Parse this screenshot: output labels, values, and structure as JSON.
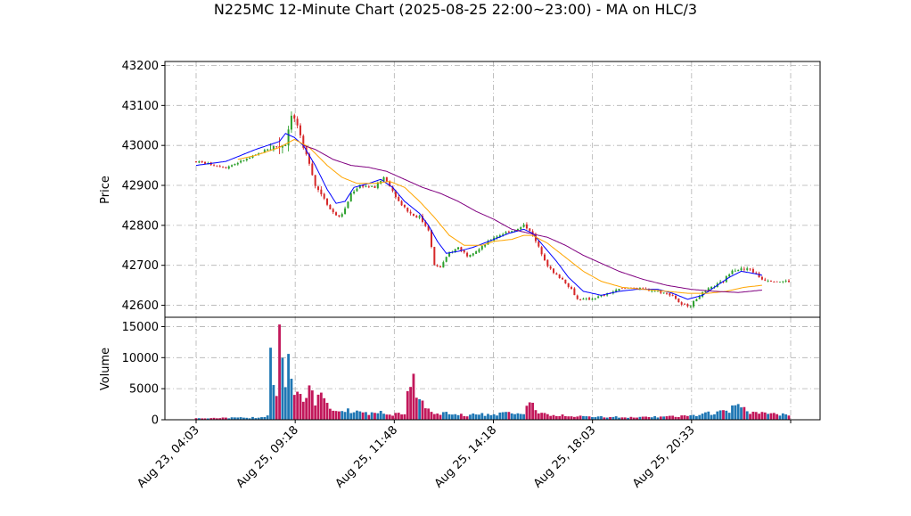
{
  "chart_data": {
    "type": "candlestick",
    "title": "N225MC 12-Minute Chart (2025-08-25 22:00~23:00) - MA on HLC/3",
    "price_panel": {
      "ylabel": "Price",
      "ylim": [
        42570,
        43210
      ],
      "yticks": [
        42600,
        42700,
        42800,
        42900,
        43000,
        43100,
        43200
      ],
      "grid": true
    },
    "volume_panel": {
      "ylabel": "Volume",
      "ylim": [
        0,
        16500
      ],
      "yticks": [
        0,
        5000,
        10000,
        15000
      ],
      "grid": true
    },
    "x_tick_labels": [
      "Aug 23, 04:03",
      "Aug 25, 09:18",
      "Aug 25, 11:48",
      "Aug 25, 14:18",
      "Aug 25, 18:03",
      "Aug 25, 20:33",
      ""
    ],
    "bar_count": 200,
    "colors": {
      "up": "#2ca02c",
      "down": "#d62728",
      "volume_up": "#1f77b4",
      "volume_down": "#c2185b",
      "ma_short": "#0000ff",
      "ma_mid": "#ffa500",
      "ma_long": "#800080"
    },
    "price_anchors": [
      [
        0,
        42960
      ],
      [
        10,
        42945
      ],
      [
        15,
        42960
      ],
      [
        20,
        42975
      ],
      [
        25,
        42995
      ],
      [
        28,
        43000
      ],
      [
        30,
        43005
      ],
      [
        32,
        43080
      ],
      [
        34,
        43050
      ],
      [
        36,
        42990
      ],
      [
        38,
        42960
      ],
      [
        40,
        42900
      ],
      [
        43,
        42870
      ],
      [
        45,
        42840
      ],
      [
        48,
        42820
      ],
      [
        50,
        42840
      ],
      [
        52,
        42880
      ],
      [
        55,
        42900
      ],
      [
        60,
        42895
      ],
      [
        63,
        42920
      ],
      [
        65,
        42900
      ],
      [
        68,
        42860
      ],
      [
        72,
        42830
      ],
      [
        75,
        42820
      ],
      [
        78,
        42790
      ],
      [
        80,
        42700
      ],
      [
        82,
        42695
      ],
      [
        85,
        42730
      ],
      [
        88,
        42745
      ],
      [
        91,
        42725
      ],
      [
        95,
        42740
      ],
      [
        100,
        42770
      ],
      [
        105,
        42785
      ],
      [
        108,
        42790
      ],
      [
        110,
        42800
      ],
      [
        112,
        42790
      ],
      [
        115,
        42745
      ],
      [
        118,
        42700
      ],
      [
        120,
        42680
      ],
      [
        123,
        42665
      ],
      [
        126,
        42640
      ],
      [
        128,
        42615
      ],
      [
        132,
        42615
      ],
      [
        137,
        42625
      ],
      [
        142,
        42640
      ],
      [
        146,
        42645
      ],
      [
        150,
        42640
      ],
      [
        155,
        42635
      ],
      [
        160,
        42625
      ],
      [
        163,
        42600
      ],
      [
        166,
        42600
      ],
      [
        169,
        42625
      ],
      [
        172,
        42640
      ],
      [
        177,
        42660
      ],
      [
        180,
        42690
      ],
      [
        186,
        42690
      ],
      [
        190,
        42665
      ],
      [
        195,
        42660
      ],
      [
        199,
        42660
      ]
    ],
    "ma_short": [
      [
        0,
        42950
      ],
      [
        10,
        42960
      ],
      [
        20,
        42990
      ],
      [
        28,
        43010
      ],
      [
        30,
        43030
      ],
      [
        33,
        43020
      ],
      [
        36,
        43000
      ],
      [
        40,
        42950
      ],
      [
        44,
        42890
      ],
      [
        47,
        42855
      ],
      [
        50,
        42860
      ],
      [
        53,
        42895
      ],
      [
        58,
        42905
      ],
      [
        62,
        42915
      ],
      [
        66,
        42895
      ],
      [
        70,
        42860
      ],
      [
        75,
        42830
      ],
      [
        78,
        42800
      ],
      [
        81,
        42760
      ],
      [
        84,
        42730
      ],
      [
        88,
        42735
      ],
      [
        93,
        42745
      ],
      [
        100,
        42765
      ],
      [
        105,
        42780
      ],
      [
        110,
        42790
      ],
      [
        113,
        42780
      ],
      [
        117,
        42745
      ],
      [
        121,
        42710
      ],
      [
        125,
        42670
      ],
      [
        130,
        42635
      ],
      [
        136,
        42625
      ],
      [
        142,
        42635
      ],
      [
        148,
        42640
      ],
      [
        155,
        42640
      ],
      [
        160,
        42630
      ],
      [
        165,
        42615
      ],
      [
        170,
        42625
      ],
      [
        175,
        42650
      ],
      [
        179,
        42670
      ],
      [
        183,
        42685
      ],
      [
        187,
        42680
      ],
      [
        190,
        42675
      ]
    ],
    "ma_mid": [
      [
        14,
        42965
      ],
      [
        20,
        42975
      ],
      [
        28,
        42995
      ],
      [
        33,
        43015
      ],
      [
        38,
        42995
      ],
      [
        44,
        42950
      ],
      [
        49,
        42920
      ],
      [
        54,
        42905
      ],
      [
        60,
        42905
      ],
      [
        65,
        42910
      ],
      [
        70,
        42895
      ],
      [
        75,
        42860
      ],
      [
        80,
        42820
      ],
      [
        85,
        42775
      ],
      [
        90,
        42750
      ],
      [
        96,
        42750
      ],
      [
        100,
        42760
      ],
      [
        106,
        42765
      ],
      [
        110,
        42775
      ],
      [
        113,
        42775
      ],
      [
        118,
        42755
      ],
      [
        124,
        42720
      ],
      [
        130,
        42685
      ],
      [
        136,
        42660
      ],
      [
        143,
        42645
      ],
      [
        150,
        42640
      ],
      [
        158,
        42635
      ],
      [
        165,
        42630
      ],
      [
        172,
        42630
      ],
      [
        178,
        42635
      ],
      [
        184,
        42645
      ],
      [
        190,
        42650
      ]
    ],
    "ma_long": [
      [
        36,
        43000
      ],
      [
        40,
        42990
      ],
      [
        46,
        42965
      ],
      [
        52,
        42950
      ],
      [
        58,
        42945
      ],
      [
        64,
        42935
      ],
      [
        70,
        42915
      ],
      [
        76,
        42895
      ],
      [
        82,
        42880
      ],
      [
        88,
        42860
      ],
      [
        94,
        42835
      ],
      [
        100,
        42815
      ],
      [
        106,
        42790
      ],
      [
        112,
        42780
      ],
      [
        118,
        42770
      ],
      [
        124,
        42750
      ],
      [
        130,
        42725
      ],
      [
        136,
        42705
      ],
      [
        142,
        42685
      ],
      [
        150,
        42665
      ],
      [
        158,
        42650
      ],
      [
        166,
        42640
      ],
      [
        174,
        42635
      ],
      [
        182,
        42632
      ],
      [
        190,
        42638
      ]
    ],
    "volume_anchors": [
      [
        0,
        250
      ],
      [
        20,
        350
      ],
      [
        22,
        500
      ],
      [
        24,
        700
      ],
      [
        25,
        12700
      ],
      [
        26,
        7000
      ],
      [
        27,
        5000
      ],
      [
        28,
        15800
      ],
      [
        29,
        9200
      ],
      [
        30,
        7000
      ],
      [
        31,
        10000
      ],
      [
        32,
        6500
      ],
      [
        33,
        4000
      ],
      [
        36,
        3000
      ],
      [
        38,
        4500
      ],
      [
        40,
        2800
      ],
      [
        42,
        5200
      ],
      [
        44,
        2200
      ],
      [
        50,
        1500
      ],
      [
        60,
        900
      ],
      [
        62,
        1400
      ],
      [
        64,
        800
      ],
      [
        70,
        1000
      ],
      [
        72,
        7200
      ],
      [
        74,
        4500
      ],
      [
        76,
        2500
      ],
      [
        80,
        1200
      ],
      [
        90,
        700
      ],
      [
        110,
        1200
      ],
      [
        112,
        3300
      ],
      [
        115,
        900
      ],
      [
        130,
        500
      ],
      [
        150,
        400
      ],
      [
        165,
        600
      ],
      [
        175,
        1200
      ],
      [
        179,
        1500
      ],
      [
        181,
        2200
      ],
      [
        183,
        1800
      ],
      [
        186,
        1200
      ],
      [
        190,
        1000
      ],
      [
        199,
        800
      ]
    ]
  }
}
